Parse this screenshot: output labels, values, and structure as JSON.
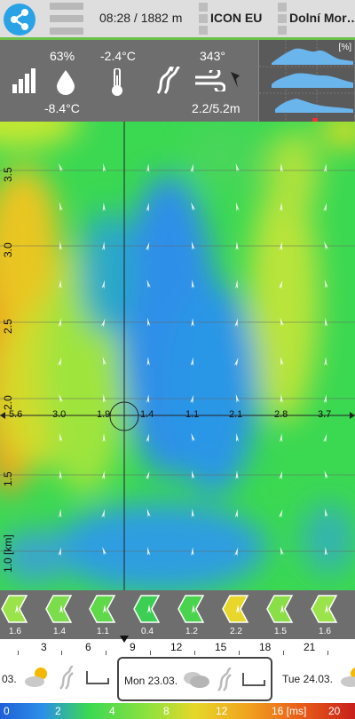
{
  "header": {
    "time_distance": "08:28 / 1882 m",
    "model": "ICON EU",
    "location": "Dolní Mor…"
  },
  "stats": {
    "humidity": "63%",
    "temperature": "-2.4°C",
    "dew_point": "-8.4°C",
    "wind_direction": "343°",
    "wind_speed": "2.2/5.2m",
    "chart_unit": "[%]"
  },
  "map": {
    "altitude_labels": [
      "3.5",
      "3.0",
      "2.5",
      "2.0",
      "1.5",
      "1.0 [km]"
    ],
    "row_values": [
      "5.6",
      "3.0",
      "1.9",
      "1.4",
      "1.1",
      "2.1",
      "2.8",
      "3.7"
    ]
  },
  "wind_row": {
    "values": [
      "1.6",
      "1.4",
      "1.1",
      "0.4",
      "1.2",
      "2.2",
      "1.5",
      "1.6"
    ],
    "colors": [
      "#9be34a",
      "#7bdc4c",
      "#5fd84a",
      "#3ccf54",
      "#4ad44e",
      "#e6d72a",
      "#8ade48",
      "#9be34a"
    ]
  },
  "ruler": {
    "hours": [
      "3",
      "6",
      "9",
      "12",
      "15",
      "18",
      "21"
    ]
  },
  "days": {
    "prev": "03.",
    "current": "Mon 23.03.",
    "next": "Tue 24.03."
  },
  "legend": {
    "labels": [
      "0",
      "2",
      "4",
      "8",
      "12",
      "16 [ms]",
      "20"
    ]
  }
}
